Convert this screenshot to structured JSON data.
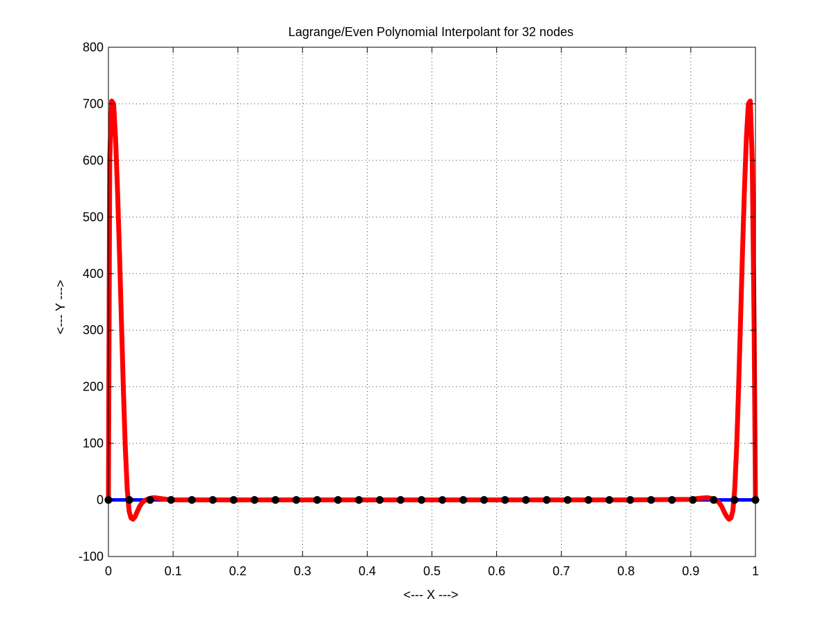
{
  "chart_data": {
    "type": "line",
    "title": "Lagrange/Even Polynomial Interpolant for 32 nodes",
    "xlabel": "<--- X --->",
    "ylabel": "<--- Y --->",
    "xlim": [
      0,
      1
    ],
    "ylim": [
      -100,
      800
    ],
    "xticks": [
      0,
      0.1,
      0.2,
      0.3,
      0.4,
      0.5,
      0.6,
      0.7,
      0.8,
      0.9,
      1
    ],
    "xtick_labels": [
      "0",
      "0.1",
      "0.2",
      "0.3",
      "0.4",
      "0.5",
      "0.6",
      "0.7",
      "0.8",
      "0.9",
      "1"
    ],
    "yticks": [
      -100,
      0,
      100,
      200,
      300,
      400,
      500,
      600,
      700,
      800
    ],
    "ytick_labels": [
      "-100",
      "0",
      "100",
      "200",
      "300",
      "400",
      "500",
      "600",
      "700",
      "800"
    ],
    "grid": true,
    "series": [
      {
        "role": "function",
        "color": "#0000ff",
        "x": [
          0,
          1
        ],
        "y": [
          0,
          0
        ]
      },
      {
        "role": "interpolant",
        "color": "#ff0000",
        "x": [
          0,
          0.002,
          0.005,
          0.008,
          0.011,
          0.014,
          0.017,
          0.02,
          0.023,
          0.026,
          0.029,
          0.032,
          0.035,
          0.038,
          0.041,
          0.044,
          0.048,
          0.052,
          0.056,
          0.06,
          0.065,
          0.07,
          0.075,
          0.08,
          0.09,
          0.1,
          0.2,
          0.3,
          0.4,
          0.5,
          0.6,
          0.7,
          0.8,
          0.9,
          0.91,
          0.92,
          0.925,
          0.93,
          0.935,
          0.94,
          0.944,
          0.948,
          0.952,
          0.956,
          0.959,
          0.962,
          0.965,
          0.968,
          0.971,
          0.974,
          0.977,
          0.98,
          0.983,
          0.986,
          0.989,
          0.992,
          0.995,
          0.998,
          1
        ],
        "y": [
          0,
          600,
          705,
          700,
          640,
          550,
          440,
          320,
          200,
          95,
          20,
          -20,
          -32,
          -34,
          -30,
          -22,
          -12,
          -5,
          -1,
          1,
          3,
          4,
          3.5,
          2.5,
          1,
          0,
          0,
          0,
          0,
          0,
          0,
          0,
          0,
          1,
          2.5,
          3.5,
          4,
          3,
          1,
          -1,
          -5,
          -12,
          -22,
          -30,
          -34,
          -32,
          -20,
          20,
          95,
          200,
          320,
          440,
          550,
          640,
          700,
          705,
          600,
          300,
          0
        ]
      },
      {
        "role": "nodes",
        "color": "#000000",
        "x": [
          0,
          0.0323,
          0.0645,
          0.0968,
          0.129,
          0.1613,
          0.1935,
          0.2258,
          0.2581,
          0.2903,
          0.3226,
          0.3548,
          0.3871,
          0.4194,
          0.4516,
          0.4839,
          0.5161,
          0.5484,
          0.5806,
          0.6129,
          0.6452,
          0.6774,
          0.7097,
          0.7419,
          0.7742,
          0.8065,
          0.8387,
          0.871,
          0.9032,
          0.9355,
          0.9677,
          1
        ],
        "y": [
          0,
          0,
          0,
          0,
          0,
          0,
          0,
          0,
          0,
          0,
          0,
          0,
          0,
          0,
          0,
          0,
          0,
          0,
          0,
          0,
          0,
          0,
          0,
          0,
          0,
          0,
          0,
          0,
          0,
          0,
          0,
          0
        ]
      }
    ]
  }
}
